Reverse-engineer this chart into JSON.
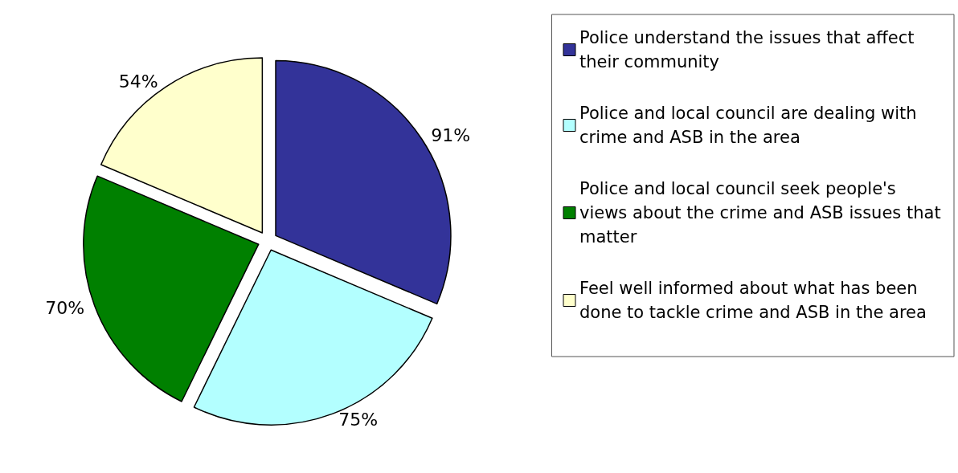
{
  "chart_data": {
    "type": "pie",
    "categories": [
      "Police understand the issues that affect their community",
      "Police and local council are dealing with crime and ASB in the area",
      "Police and local council seek people's views about the crime and ASB issues that matter",
      "Feel well informed about what has been done to tackle crime and ASB in the area"
    ],
    "values": [
      91,
      75,
      70,
      54
    ],
    "colors": [
      "#333399",
      "#b3ffff",
      "#008000",
      "#ffffcc"
    ],
    "value_labels": [
      "91%",
      "75%",
      "70%",
      "54%"
    ],
    "legend": "right"
  }
}
